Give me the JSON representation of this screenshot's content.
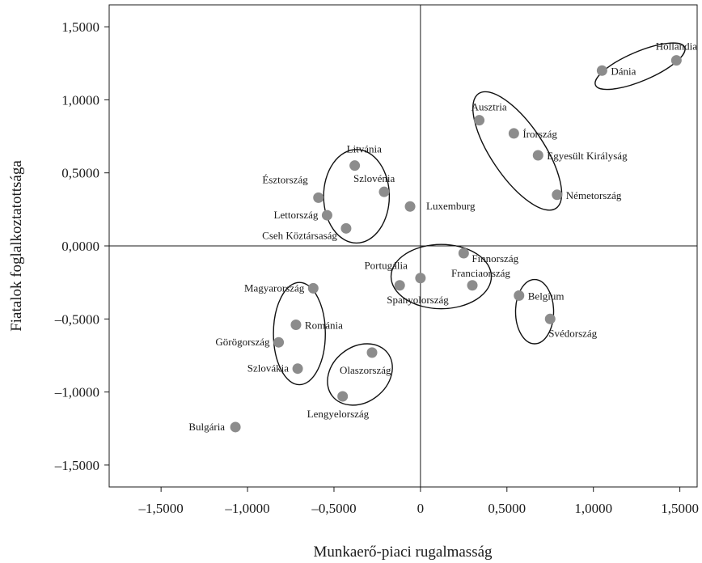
{
  "chart_data": {
    "type": "scatter",
    "xlabel": "Munkaerő-piaci rugalmasság",
    "ylabel": "Fiatalok foglalkoztatottsága",
    "xlim": [
      -1.8,
      1.6
    ],
    "ylim": [
      -1.65,
      1.65
    ],
    "x_ticks": [
      -1.5,
      -1.0,
      -0.5,
      0,
      0.5,
      1.0,
      1.5
    ],
    "x_tick_labels": [
      "–1,5000",
      "–1,0000",
      "–0,5000",
      "0",
      "0,5000",
      "1,0000",
      "1,5000"
    ],
    "y_ticks": [
      1.5,
      1.0,
      0.5,
      0,
      -0.5,
      -1.0,
      -1.5
    ],
    "y_tick_labels": [
      "1,5000",
      "1,0000",
      "0,5000",
      "0,0000",
      "–0,5000",
      "–1,0000",
      "–1,5000"
    ],
    "marker_color": "#8c8c8c",
    "points": [
      {
        "label": "Hollandia",
        "x": 1.48,
        "y": 1.27
      },
      {
        "label": "Dánia",
        "x": 1.05,
        "y": 1.2
      },
      {
        "label": "Ausztria",
        "x": 0.34,
        "y": 0.86
      },
      {
        "label": "Írország",
        "x": 0.54,
        "y": 0.77
      },
      {
        "label": "Egyesült Királyság",
        "x": 0.68,
        "y": 0.62
      },
      {
        "label": "Németország",
        "x": 0.79,
        "y": 0.35
      },
      {
        "label": "Litvánia",
        "x": -0.38,
        "y": 0.55
      },
      {
        "label": "Szlovénia",
        "x": -0.21,
        "y": 0.37
      },
      {
        "label": "Észtország",
        "x": -0.59,
        "y": 0.33
      },
      {
        "label": "Lettország",
        "x": -0.54,
        "y": 0.21
      },
      {
        "label": "Luxemburg",
        "x": -0.06,
        "y": 0.27
      },
      {
        "label": "Cseh Köztársaság",
        "x": -0.43,
        "y": 0.12
      },
      {
        "label": "Finnország",
        "x": 0.25,
        "y": -0.05
      },
      {
        "label": "Portugália",
        "x": 0.0,
        "y": -0.22
      },
      {
        "label": "Spanyolország",
        "x": -0.12,
        "y": -0.27
      },
      {
        "label": "Franciaország",
        "x": 0.3,
        "y": -0.27
      },
      {
        "label": "Belgium",
        "x": 0.57,
        "y": -0.34
      },
      {
        "label": "Svédország",
        "x": 0.75,
        "y": -0.5
      },
      {
        "label": "Magyarország",
        "x": -0.62,
        "y": -0.29
      },
      {
        "label": "Románia",
        "x": -0.72,
        "y": -0.54
      },
      {
        "label": "Görögország",
        "x": -0.82,
        "y": -0.66
      },
      {
        "label": "Szlovákia",
        "x": -0.71,
        "y": -0.84
      },
      {
        "label": "Olaszország",
        "x": -0.28,
        "y": -0.73
      },
      {
        "label": "Lengyelország",
        "x": -0.45,
        "y": -1.03
      },
      {
        "label": "Bulgária",
        "x": -1.07,
        "y": -1.24
      }
    ],
    "clusters": [
      {
        "name": "cluster-hollandia-dania",
        "cx": 1.27,
        "cy": 1.23,
        "rx": 0.28,
        "ry": 0.1,
        "rotate": -23
      },
      {
        "name": "cluster-ausztria-nemetorszag",
        "cx": 0.56,
        "cy": 0.65,
        "rx": 0.4,
        "ry": 0.18,
        "rotate": 56
      },
      {
        "name": "cluster-baltic-central",
        "cx": -0.37,
        "cy": 0.34,
        "rx": 0.19,
        "ry": 0.32,
        "rotate": 0
      },
      {
        "name": "cluster-southwest",
        "cx": 0.12,
        "cy": -0.21,
        "rx": 0.29,
        "ry": 0.22,
        "rotate": 0
      },
      {
        "name": "cluster-belgium-svedorszag",
        "cx": 0.66,
        "cy": -0.45,
        "rx": 0.11,
        "ry": 0.22,
        "rotate": 0
      },
      {
        "name": "cluster-east",
        "cx": -0.7,
        "cy": -0.6,
        "rx": 0.15,
        "ry": 0.35,
        "rotate": 0
      },
      {
        "name": "cluster-olasz-lengyel",
        "cx": -0.35,
        "cy": -0.88,
        "rx": 0.16,
        "ry": 0.24,
        "rotate": 52
      }
    ]
  }
}
